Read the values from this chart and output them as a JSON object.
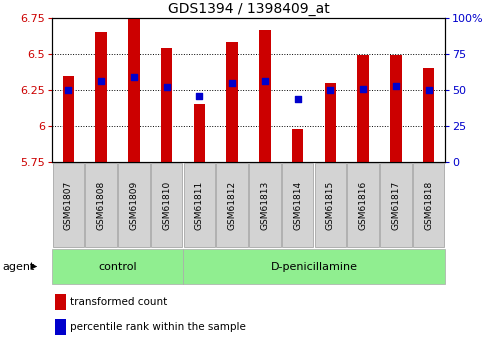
{
  "title": "GDS1394 / 1398409_at",
  "samples": [
    "GSM61807",
    "GSM61808",
    "GSM61809",
    "GSM61810",
    "GSM61811",
    "GSM61812",
    "GSM61813",
    "GSM61814",
    "GSM61815",
    "GSM61816",
    "GSM61817",
    "GSM61818"
  ],
  "bar_tops": [
    6.35,
    6.65,
    6.75,
    6.54,
    6.15,
    6.58,
    6.67,
    5.98,
    6.3,
    6.49,
    6.49,
    6.4
  ],
  "bar_base": 5.75,
  "blue_vals": [
    6.25,
    6.31,
    6.34,
    6.27,
    6.21,
    6.3,
    6.31,
    6.19,
    6.25,
    6.26,
    6.28,
    6.25
  ],
  "ylim_left": [
    5.75,
    6.75
  ],
  "yticks_left": [
    5.75,
    6.0,
    6.25,
    6.5,
    6.75
  ],
  "ytick_labels_left": [
    "5.75",
    "6",
    "6.25",
    "6.5",
    "6.75"
  ],
  "ylim_right": [
    0,
    100
  ],
  "yticks_right": [
    0,
    25,
    50,
    75,
    100
  ],
  "ytick_labels_right": [
    "0",
    "25",
    "50",
    "75",
    "100%"
  ],
  "bar_color": "#cc0000",
  "blue_color": "#0000cc",
  "bg_color": "#ffffff",
  "control_count": 4,
  "treatment_count": 8,
  "control_label": "control",
  "treatment_label": "D-penicillamine",
  "legend_bar_label": "transformed count",
  "legend_blue_label": "percentile rank within the sample",
  "agent_label": "agent",
  "bar_width": 0.35,
  "gray_bg": "#d3d3d3",
  "green_bg": "#90ee90",
  "title_fontsize": 10,
  "tick_fontsize": 8,
  "sample_fontsize": 6.5,
  "legend_fontsize": 7.5,
  "group_fontsize": 8
}
